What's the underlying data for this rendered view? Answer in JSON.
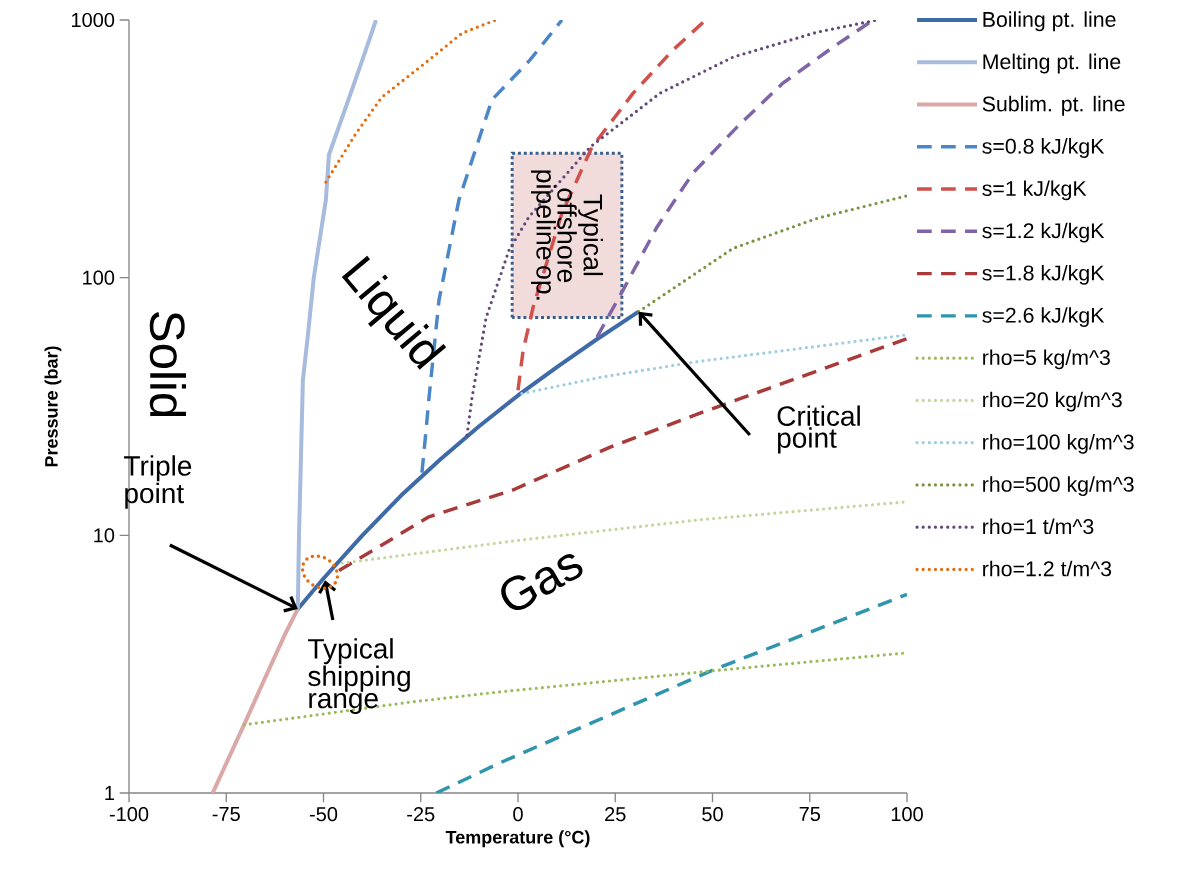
{
  "chart_data": {
    "type": "line",
    "xlabel": "Temperature (°C)",
    "ylabel": "Pressure (bar)",
    "log": "y",
    "xlim": [
      -100,
      100
    ],
    "xticks": [
      -100,
      -75,
      -50,
      -25,
      0,
      25,
      50,
      75,
      100
    ],
    "ylim": [
      1,
      1000
    ],
    "yticks": [
      1,
      10,
      100,
      1000
    ],
    "legend": "right",
    "annotations": [
      "Solid",
      "Liquid",
      "Gas",
      {
        "text": "Triple point",
        "x": -56.6,
        "y": 5.18
      },
      {
        "text": "Critical point",
        "x": 31,
        "y": 73.8
      },
      "Typical shipping range",
      "Typical offshore pipeline op."
    ],
    "series": [
      {
        "name": "Boiling pt. line",
        "color": "#3f6aa8",
        "line_style": "solid",
        "x": [
          -56.6,
          -50,
          -40,
          -30,
          -20,
          -10,
          0,
          10,
          20,
          31
        ],
        "values": [
          5.18,
          6.8,
          10,
          14.3,
          19.7,
          26.5,
          34.9,
          45,
          57.3,
          73.8
        ]
      },
      {
        "name": "Melting pt. line",
        "color": "#a6bbdd",
        "line_style": "solid",
        "x": [
          -56.6,
          -56.3,
          -55.8,
          -55.3,
          -54,
          -52.5,
          -49.4,
          -48.6,
          -43.4,
          -40,
          -36.5
        ],
        "values": [
          5.18,
          10,
          20,
          40,
          60,
          100,
          200,
          300,
          500,
          700,
          1000
        ]
      },
      {
        "name": "Sublim. pt. line",
        "color": "#dba8a8",
        "line_style": "solid",
        "x": [
          -78.5,
          -70,
          -65,
          -60,
          -56.6
        ],
        "values": [
          1,
          1.9,
          2.8,
          4.1,
          5.18
        ]
      },
      {
        "name": "s=0.8 kJ/kgK",
        "color": "#4a86c8",
        "line_style": "dashed",
        "x": [
          -24.7,
          -23.7,
          -22.9,
          -20.3,
          -15.2,
          -6.7,
          3.1,
          11.3
        ],
        "values": [
          17.5,
          25,
          34,
          82,
          200,
          490,
          700,
          1000
        ]
      },
      {
        "name": "s=1 kJ/kgK",
        "color": "#d0504c",
        "line_style": "dashed",
        "x": [
          0,
          1.3,
          3.9,
          11.3,
          19,
          29.6,
          39.8,
          47.6
        ],
        "values": [
          36.6,
          52,
          77,
          178,
          321,
          520,
          764,
          980
        ]
      },
      {
        "name": "s=1.2 kJ/kgK",
        "color": "#8064a8",
        "line_style": "dashed",
        "x": [
          20.3,
          27,
          35.7,
          45,
          56.3,
          68.1,
          81,
          91.3
        ],
        "values": [
          58.8,
          89.5,
          157,
          255,
          384,
          569,
          785,
          1000
        ]
      },
      {
        "name": "s=1.8 kJ/kgK",
        "color": "#a83a3a",
        "line_style": "dashed",
        "x": [
          -46,
          -22.9,
          -1.3,
          23.7,
          46.8,
          100
        ],
        "values": [
          7.3,
          11.8,
          15,
          22,
          29.8,
          58
        ]
      },
      {
        "name": "s=2.6 kJ/kgK",
        "color": "#2e95ad",
        "line_style": "dashed",
        "x": [
          -21,
          -4.6,
          50.1,
          100
        ],
        "values": [
          1,
          1.31,
          3,
          5.9
        ]
      },
      {
        "name": "rho=5 kg/m^3",
        "color": "#9bbb59",
        "line_style": "dotted",
        "x": [
          -70.4,
          -28,
          -4.6,
          52,
          100
        ],
        "values": [
          1.84,
          2.25,
          2.47,
          3,
          3.5
        ]
      },
      {
        "name": "rho=20 kg/m^3",
        "color": "#c3d69b",
        "line_style": "dotted",
        "x": [
          -45.2,
          1,
          46.8,
          100
        ],
        "values": [
          7.8,
          9.6,
          11.5,
          13.5
        ]
      },
      {
        "name": "rho=100 kg/m^3",
        "color": "#9dcde0",
        "line_style": "dotted",
        "x": [
          1,
          21,
          45,
          100
        ],
        "values": [
          35.5,
          41,
          47,
          60
        ]
      },
      {
        "name": "rho=500 kg/m^3",
        "color": "#77933c",
        "line_style": "dotted",
        "x": [
          31,
          55.3,
          76.9,
          100
        ],
        "values": [
          73.8,
          130,
          170,
          208
        ]
      },
      {
        "name": "rho=1 t/m^3",
        "color": "#60497a",
        "line_style": "dotted",
        "x": [
          -13.1,
          -11.8,
          -8.2,
          -2.3,
          2.8,
          18.5,
          36.5,
          55.3,
          76.9,
          92.3
        ],
        "values": [
          24.5,
          34.4,
          70,
          128,
          172,
          321,
          520,
          718,
          897,
          1000
        ]
      },
      {
        "name": "rho=1.2 t/m^3",
        "color": "#e46c0a",
        "line_style": "dotted",
        "x": [
          -49.4,
          -41.6,
          -35,
          -22.9,
          -14.4,
          -5.7
        ],
        "values": [
          235,
          364,
          502,
          699,
          889,
          1000
        ]
      }
    ]
  }
}
